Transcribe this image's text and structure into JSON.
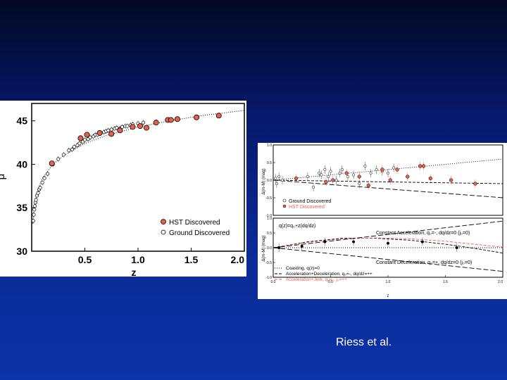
{
  "caption": "Riess et al.",
  "colors": {
    "hst": "#e8604a",
    "ground": "#ffffff",
    "background": "#0a2a96",
    "fit": "#000000",
    "accel_jerk": "#e8604a"
  },
  "chart_data": [
    {
      "type": "scatter",
      "title": "",
      "xlabel": "z",
      "ylabel": "μ",
      "xlim": [
        0,
        2.0
      ],
      "ylim": [
        30,
        47
      ],
      "xticks": [
        "0.5",
        "1.0",
        "1.5",
        "2.0"
      ],
      "yticks": [
        "30",
        "35",
        "40",
        "45"
      ],
      "legend": {
        "placement": "bottom-right",
        "entries": [
          "HST Discovered",
          "Ground Discovered"
        ]
      },
      "series": [
        {
          "name": "HST Discovered",
          "points": [
            [
              0.19,
              40.1
            ],
            [
              0.46,
              43.0
            ],
            [
              0.52,
              43.4
            ],
            [
              0.64,
              43.6
            ],
            [
              0.75,
              43.5
            ],
            [
              0.83,
              43.9
            ],
            [
              0.95,
              44.3
            ],
            [
              1.02,
              44.4
            ],
            [
              1.08,
              44.2
            ],
            [
              1.17,
              44.8
            ],
            [
              1.28,
              45.1
            ],
            [
              1.31,
              45.1
            ],
            [
              1.37,
              45.2
            ],
            [
              1.55,
              45.4
            ],
            [
              1.76,
              45.6
            ]
          ]
        },
        {
          "name": "Ground Discovered",
          "points": [
            [
              0.015,
              33.5
            ],
            [
              0.02,
              34.2
            ],
            [
              0.025,
              34.8
            ],
            [
              0.03,
              35.2
            ],
            [
              0.035,
              35.6
            ],
            [
              0.04,
              35.9
            ],
            [
              0.05,
              36.4
            ],
            [
              0.06,
              36.7
            ],
            [
              0.07,
              37.1
            ],
            [
              0.08,
              37.3
            ],
            [
              0.1,
              37.9
            ],
            [
              0.12,
              38.4
            ],
            [
              0.15,
              38.9
            ],
            [
              0.2,
              40.0
            ],
            [
              0.25,
              40.6
            ],
            [
              0.3,
              41.1
            ],
            [
              0.35,
              41.6
            ],
            [
              0.38,
              41.7
            ],
            [
              0.4,
              42.0
            ],
            [
              0.43,
              42.2
            ],
            [
              0.45,
              42.4
            ],
            [
              0.48,
              42.6
            ],
            [
              0.5,
              42.8
            ],
            [
              0.53,
              42.9
            ],
            [
              0.55,
              43.1
            ],
            [
              0.58,
              43.2
            ],
            [
              0.6,
              43.4
            ],
            [
              0.62,
              43.4
            ],
            [
              0.65,
              43.6
            ],
            [
              0.68,
              43.7
            ],
            [
              0.7,
              43.8
            ],
            [
              0.72,
              43.9
            ],
            [
              0.75,
              44.0
            ],
            [
              0.78,
              44.1
            ],
            [
              0.8,
              44.2
            ],
            [
              0.83,
              44.1
            ],
            [
              0.85,
              44.3
            ],
            [
              0.88,
              44.4
            ],
            [
              0.9,
              44.4
            ],
            [
              0.93,
              44.5
            ],
            [
              0.95,
              44.6
            ],
            [
              1.0,
              44.7
            ],
            [
              1.05,
              44.8
            ]
          ]
        }
      ],
      "fit_line": {
        "style": "dotted",
        "x": [
          0.01,
          0.02,
          0.05,
          0.1,
          0.2,
          0.3,
          0.5,
          0.7,
          1.0,
          1.3,
          1.6,
          2.0
        ],
        "y": [
          33.2,
          34.7,
          36.8,
          38.4,
          40.0,
          41.0,
          42.4,
          43.3,
          44.3,
          45.0,
          45.6,
          46.2
        ]
      }
    },
    {
      "type": "scatter",
      "title": "",
      "xlabel": "z",
      "ylabel_top": "Δ(m-M) (mag)",
      "ylabel_bottom": "Δ(m-M) (mag)",
      "xlim": [
        0,
        2.0
      ],
      "xticks": [
        "0.0",
        "0.5",
        "1.0",
        "1.5",
        "2.0"
      ],
      "top_panel": {
        "ylim": [
          -1.0,
          1.0
        ],
        "yticks": [
          "1.0",
          "0.5",
          "0.0",
          "-0.5",
          "-1.0"
        ],
        "legend": {
          "placement": "bottom-left",
          "entries": [
            "Ground Discovered",
            "HST Discovered"
          ]
        },
        "series": [
          {
            "name": "Ground Discovered",
            "points": [
              [
                0.02,
                0.05
              ],
              [
                0.03,
                -0.1
              ],
              [
                0.05,
                0.1
              ],
              [
                0.08,
                0.0
              ],
              [
                0.3,
                0.1
              ],
              [
                0.35,
                -0.2
              ],
              [
                0.4,
                0.2
              ],
              [
                0.42,
                0.15
              ],
              [
                0.45,
                0.3
              ],
              [
                0.48,
                0.1
              ],
              [
                0.5,
                0.25
              ],
              [
                0.55,
                0.0
              ],
              [
                0.58,
                0.2
              ],
              [
                0.6,
                0.3
              ],
              [
                0.65,
                0.1
              ],
              [
                0.7,
                0.15
              ],
              [
                0.75,
                -0.1
              ],
              [
                0.8,
                0.4
              ],
              [
                0.85,
                0.2
              ],
              [
                0.9,
                0.3
              ],
              [
                0.95,
                0.25
              ],
              [
                1.0,
                0.2
              ],
              [
                1.05,
                0.35
              ]
            ]
          },
          {
            "name": "HST Discovered",
            "points": [
              [
                0.2,
                0.05
              ],
              [
                0.46,
                -0.05
              ],
              [
                0.52,
                0.0
              ],
              [
                0.64,
                0.2
              ],
              [
                0.75,
                0.1
              ],
              [
                0.83,
                -0.15
              ],
              [
                0.95,
                0.3
              ],
              [
                1.02,
                0.0
              ],
              [
                1.08,
                0.3
              ],
              [
                1.17,
                0.1
              ],
              [
                1.28,
                0.4
              ],
              [
                1.31,
                0.4
              ],
              [
                1.37,
                0.05
              ],
              [
                1.55,
                0.0
              ],
              [
                1.76,
                -0.1
              ]
            ]
          }
        ],
        "lines": [
          {
            "style": "dotted",
            "x": [
              0,
              2.0
            ],
            "y": [
              0.0,
              0.6
            ]
          },
          {
            "style": "dashed",
            "x": [
              0,
              2.0
            ],
            "y": [
              0.0,
              -0.1
            ]
          },
          {
            "style": "long-dash",
            "x": [
              0,
              2.0
            ],
            "y": [
              0.0,
              -0.5
            ]
          }
        ]
      },
      "bottom_panel": {
        "ylim": [
          -1.0,
          1.0
        ],
        "yticks": [
          "1.0",
          "0.5",
          "0.0",
          "-0.5",
          "-1.0"
        ],
        "annotations": [
          "q(z)=q₀+z(dq/dz)",
          "Constant Acceleration, q₀=-, dq/dz=0 (j₀=0)",
          "Constant Deceleration, q₀=+, dq/dz=0 (j₀=0)"
        ],
        "legend": {
          "placement": "bottom-left",
          "entries": [
            "Coasting, q(z)=0",
            "Acceleration+Deceleration, q₀=-, dq/dz=++",
            "Acceleration+Jerk, q₀=-, j₀=++"
          ]
        },
        "series": [
          {
            "name": "Binned data",
            "points": [
              [
                0.05,
                0.0
              ],
              [
                0.25,
                0.05
              ],
              [
                0.45,
                0.2
              ],
              [
                0.7,
                0.2
              ],
              [
                1.0,
                0.15
              ],
              [
                1.3,
                0.2
              ],
              [
                1.6,
                0.0
              ]
            ]
          }
        ],
        "lines": [
          {
            "style": "dotted",
            "x": [
              0,
              2.0
            ],
            "y": [
              0.0,
              0.0
            ]
          },
          {
            "style": "dashed",
            "x": [
              0,
              0.3,
              0.6,
              0.9,
              1.2,
              1.5,
              1.8,
              2.0
            ],
            "y": [
              0.0,
              0.2,
              0.32,
              0.32,
              0.25,
              0.12,
              -0.05,
              -0.18
            ]
          },
          {
            "style": "red-dashed",
            "x": [
              0,
              0.3,
              0.6,
              0.9,
              1.2,
              1.5,
              1.8,
              2.0
            ],
            "y": [
              0.0,
              0.18,
              0.3,
              0.33,
              0.3,
              0.22,
              0.1,
              0.02
            ]
          },
          {
            "style": "long-dash",
            "x": [
              0,
              2.0
            ],
            "y": [
              0.0,
              0.9
            ]
          },
          {
            "style": "long-dash",
            "x": [
              0,
              2.0
            ],
            "y": [
              0.0,
              -0.8
            ]
          }
        ]
      }
    }
  ]
}
